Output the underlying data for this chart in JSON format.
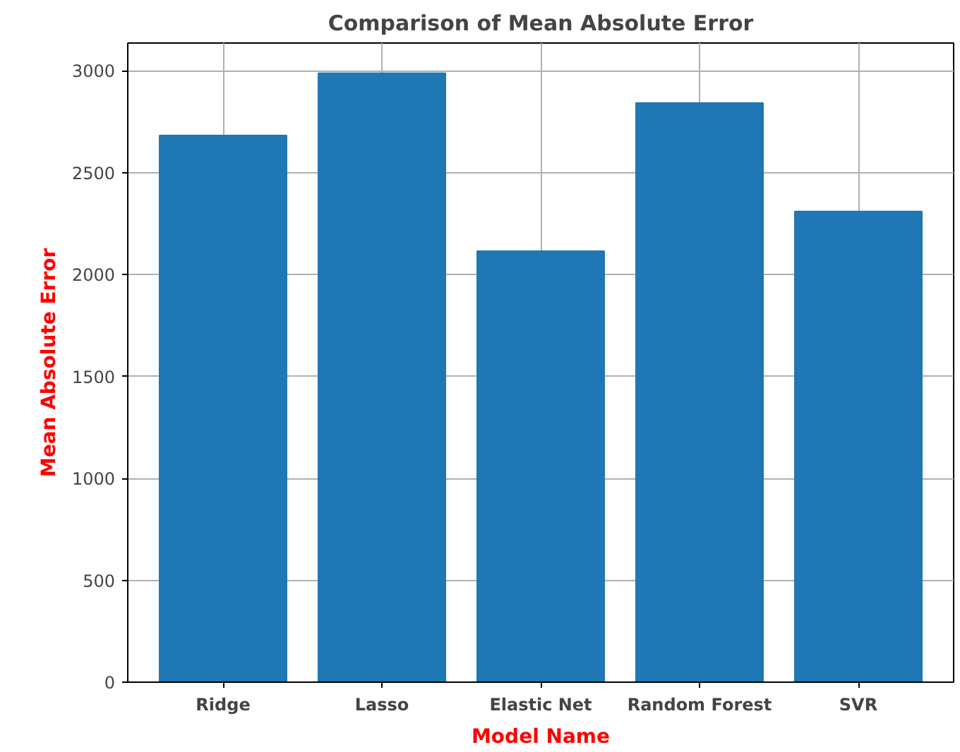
{
  "chart_data": {
    "type": "bar",
    "title": "Comparison of Mean Absolute Error",
    "xlabel": "Model Name",
    "ylabel": "Mean Absolute Error",
    "categories": [
      "Ridge",
      "Lasso",
      "Elastic Net",
      "Random Forest",
      "SVR"
    ],
    "values": [
      2682,
      2987,
      2114,
      2841,
      2309
    ],
    "color": "#1f77b4",
    "ylim": [
      0,
      3135
    ],
    "yticks": [
      0,
      500,
      1000,
      1500,
      2000,
      2500,
      3000
    ],
    "grid": true
  }
}
